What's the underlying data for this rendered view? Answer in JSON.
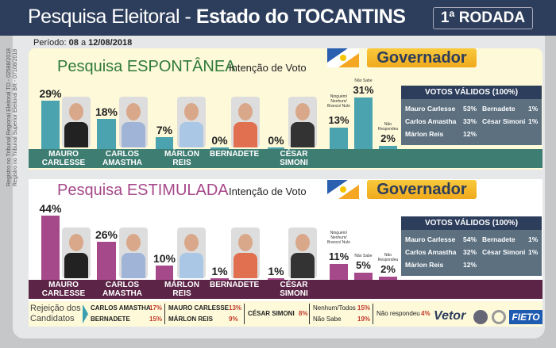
{
  "header": {
    "title_light": "Pesquisa Eleitoral - ",
    "title_bold": "Estado do  TOCANTINS",
    "round": "1ª RODADA"
  },
  "period": {
    "label": "Período:",
    "start": "08",
    "sep": " a ",
    "end": "12/08/2018"
  },
  "registration": [
    "Registro no Tribunal Regional Eleitoral TO - 02588/2018",
    "Registro no Tribunal Superior Eleitoral BR - 07108/2018"
  ],
  "office": "Governador",
  "colors": {
    "header": "#2d3e5c",
    "spont_bar": "#4aa3ae",
    "spont_band": "#3e7d72",
    "spont_title": "#2f7a38",
    "stim_bar": "#a6498a",
    "stim_band": "#5c2446",
    "stim_title": "#a6498a"
  },
  "chart_data": [
    {
      "type": "bar",
      "title": "Pesquisa ESPONTÂNEA",
      "subtitle": "Intenção de Voto",
      "categories": [
        "MAURO CARLESSE",
        "CARLOS AMASTHA",
        "MÁRLON REIS",
        "BERNADETE",
        "CÉSAR SIMONI",
        "Ninguém/ Nenhum/ Branco/ Nulo",
        "Não Sabe",
        "Não Respondeu"
      ],
      "values": [
        29,
        18,
        7,
        0,
        0,
        13,
        31,
        2
      ],
      "labels": [
        "29%",
        "18%",
        "7%",
        "0%",
        "0%",
        "13%",
        "31%",
        "2%"
      ],
      "valid_votes": {
        "title": "VOTOS VÁLIDOS (100%)",
        "rows": [
          [
            "Mauro Carlesse",
            "53%"
          ],
          [
            "Carlos Amastha",
            "33%"
          ],
          [
            "Márlon Reis",
            "12%"
          ],
          [
            "Bernadete",
            "1%"
          ],
          [
            "César Simoni",
            "1%"
          ]
        ]
      }
    },
    {
      "type": "bar",
      "title": "Pesquisa ESTIMULADA",
      "subtitle": "Intenção de Voto",
      "categories": [
        "MAURO CARLESSE",
        "CARLOS AMASTHA",
        "MÁRLON REIS",
        "BERNADETE",
        "CÉSAR SIMONI",
        "Ninguém/ Nenhum/ Branco/ Nulo",
        "Não Sabe",
        "Não Respondeu"
      ],
      "values": [
        44,
        26,
        10,
        1,
        1,
        11,
        5,
        2
      ],
      "labels": [
        "44%",
        "26%",
        "10%",
        "1%",
        "1%",
        "11%",
        "5%",
        "2%"
      ],
      "valid_votes": {
        "title": "VOTOS VÁLIDOS (100%)",
        "rows": [
          [
            "Mauro Carlesse",
            "54%"
          ],
          [
            "Carlos Amastha",
            "32%"
          ],
          [
            "Márlon Reis",
            "12%"
          ],
          [
            "Bernadete",
            "1%"
          ],
          [
            "César Simoni",
            "1%"
          ]
        ]
      }
    }
  ],
  "rejection": {
    "title": [
      "Rejeição dos",
      "Candidatos"
    ],
    "items": [
      [
        "CARLOS AMASTHA",
        "17%"
      ],
      [
        "BERNADETE",
        "15%"
      ],
      [
        "MAURO CARLESSE",
        "13%"
      ],
      [
        "MÁRLON REIS",
        "9%"
      ],
      [
        "CÉSAR SIMONI",
        "8%"
      ],
      [
        "Nenhum/Todos",
        "15%"
      ],
      [
        "Não Sabe",
        "19%"
      ],
      [
        "Não respondeu",
        "4%"
      ]
    ]
  },
  "logos": [
    "Vetor Pesquisas",
    "TV Anhanguera",
    "Record",
    "FIETO"
  ]
}
